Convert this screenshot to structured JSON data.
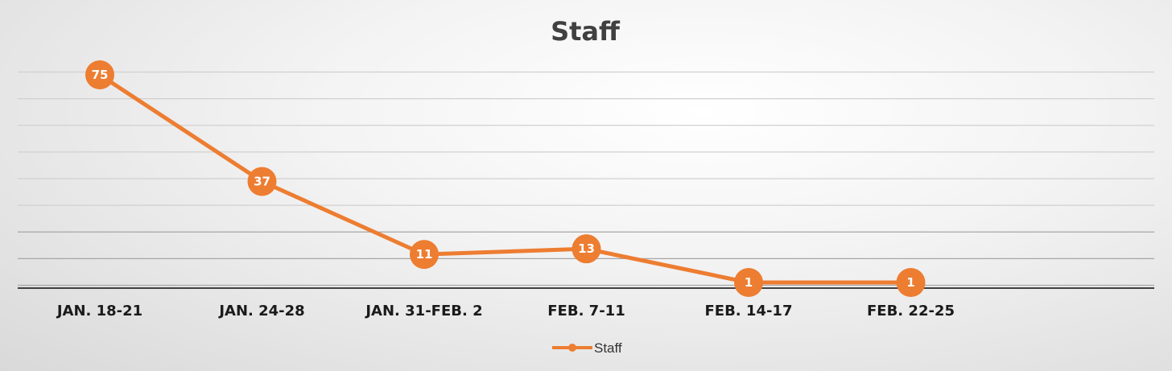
{
  "chart_data": {
    "type": "line",
    "title": "Staff",
    "categories": [
      "JAN. 18-21",
      "JAN. 24-28",
      "JAN. 31-FEB. 2",
      "FEB. 7-11",
      "FEB. 14-17",
      "FEB. 22-25"
    ],
    "series": [
      {
        "name": "Staff",
        "values": [
          75,
          37,
          11,
          13,
          1,
          1
        ],
        "color": "#ED7D31"
      }
    ],
    "ylim": [
      -1,
      80
    ],
    "grid": true,
    "legend": "bottom",
    "data_labels": true
  }
}
